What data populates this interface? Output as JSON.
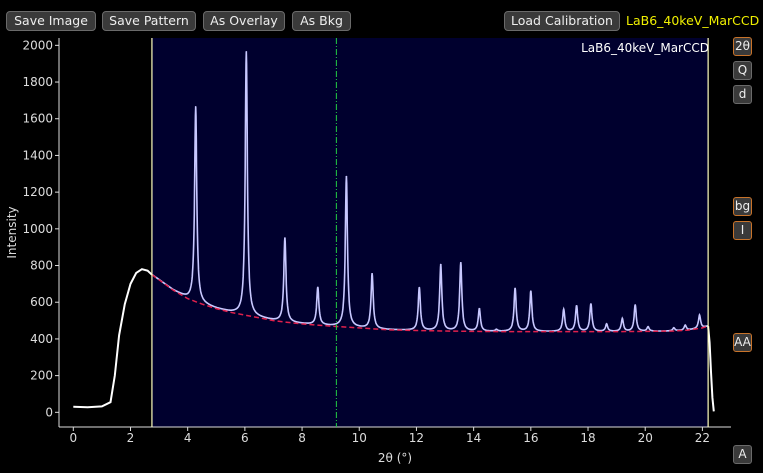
{
  "toolbar": {
    "save_image": "Save Image",
    "save_pattern": "Save Pattern",
    "as_overlay": "As Overlay",
    "as_bkg": "As Bkg",
    "load_calibration": "Load Calibration",
    "calibration_name": "LaB6_40keV_MarCCD"
  },
  "side_buttons": {
    "two_theta": "2θ",
    "q": "Q",
    "d": "d",
    "bg": "bg",
    "i": "I",
    "aa": "AA",
    "a": "A"
  },
  "colors": {
    "plot_area": "#00002e",
    "pattern_line": "#ffffff",
    "in_region_line": "#c8c8ff",
    "background_line": "#e0204c",
    "roi_marker": "#ffffc0",
    "cursor_line": "#22cc44",
    "calibration_text": "#f0f000"
  },
  "chart_data": {
    "type": "line",
    "title": "LaB6_40keV_MarCCD",
    "xlabel": "2θ (°)",
    "ylabel": "Intensity",
    "xlim": [
      -0.5,
      23.0
    ],
    "ylim": [
      -80,
      2040
    ],
    "xticks": [
      0,
      2,
      4,
      6,
      8,
      10,
      12,
      14,
      16,
      18,
      20,
      22
    ],
    "yticks": [
      0,
      200,
      400,
      600,
      800,
      1000,
      1200,
      1400,
      1600,
      1800,
      2000
    ],
    "roi": [
      2.75,
      22.2
    ],
    "cursor_x": 9.2,
    "series": [
      {
        "values": [
          [
            0.0,
            30
          ],
          [
            0.5,
            28
          ],
          [
            1.0,
            32
          ],
          [
            1.3,
            55
          ],
          [
            1.45,
            200
          ],
          [
            1.6,
            420
          ],
          [
            1.8,
            590
          ],
          [
            2.0,
            700
          ],
          [
            2.2,
            760
          ],
          [
            2.4,
            780
          ],
          [
            2.6,
            772
          ],
          [
            2.75,
            750
          ]
        ]
      },
      {
        "values": [
          [
            2.75,
            750
          ],
          [
            3.0,
            722
          ],
          [
            3.5,
            665
          ],
          [
            4.0,
            620
          ],
          [
            4.5,
            590
          ],
          [
            5.0,
            565
          ],
          [
            5.5,
            545
          ],
          [
            6.0,
            530
          ],
          [
            6.5,
            515
          ],
          [
            7.0,
            500
          ],
          [
            7.5,
            490
          ],
          [
            8.0,
            482
          ],
          [
            9.0,
            470
          ],
          [
            10.0,
            460
          ],
          [
            11.0,
            450
          ],
          [
            12.0,
            446
          ],
          [
            13.0,
            443
          ],
          [
            14.0,
            441
          ],
          [
            15.0,
            440
          ],
          [
            16.0,
            440
          ],
          [
            17.0,
            440
          ],
          [
            18.0,
            440
          ],
          [
            19.0,
            440
          ],
          [
            20.0,
            441
          ],
          [
            21.0,
            443
          ],
          [
            21.5,
            448
          ],
          [
            22.0,
            460
          ],
          [
            22.2,
            470
          ]
        ]
      },
      {
        "values": [
          [
            22.2,
            470
          ],
          [
            22.25,
            380
          ],
          [
            22.3,
            220
          ],
          [
            22.35,
            80
          ],
          [
            22.4,
            5
          ]
        ]
      }
    ],
    "peaks": [
      {
        "x": 4.28,
        "y": 1665
      },
      {
        "x": 6.05,
        "y": 1965
      },
      {
        "x": 7.4,
        "y": 950
      },
      {
        "x": 8.55,
        "y": 680
      },
      {
        "x": 9.55,
        "y": 1285
      },
      {
        "x": 10.45,
        "y": 755
      },
      {
        "x": 12.1,
        "y": 680
      },
      {
        "x": 12.85,
        "y": 805
      },
      {
        "x": 13.55,
        "y": 815
      },
      {
        "x": 14.2,
        "y": 565
      },
      {
        "x": 14.8,
        "y": 450
      },
      {
        "x": 15.45,
        "y": 675
      },
      {
        "x": 16.0,
        "y": 660
      },
      {
        "x": 17.15,
        "y": 560
      },
      {
        "x": 17.6,
        "y": 580
      },
      {
        "x": 18.1,
        "y": 590
      },
      {
        "x": 18.65,
        "y": 480
      },
      {
        "x": 19.2,
        "y": 510
      },
      {
        "x": 19.65,
        "y": 585
      },
      {
        "x": 20.1,
        "y": 465
      },
      {
        "x": 21.0,
        "y": 460
      },
      {
        "x": 21.4,
        "y": 475
      },
      {
        "x": 21.9,
        "y": 530
      }
    ]
  }
}
